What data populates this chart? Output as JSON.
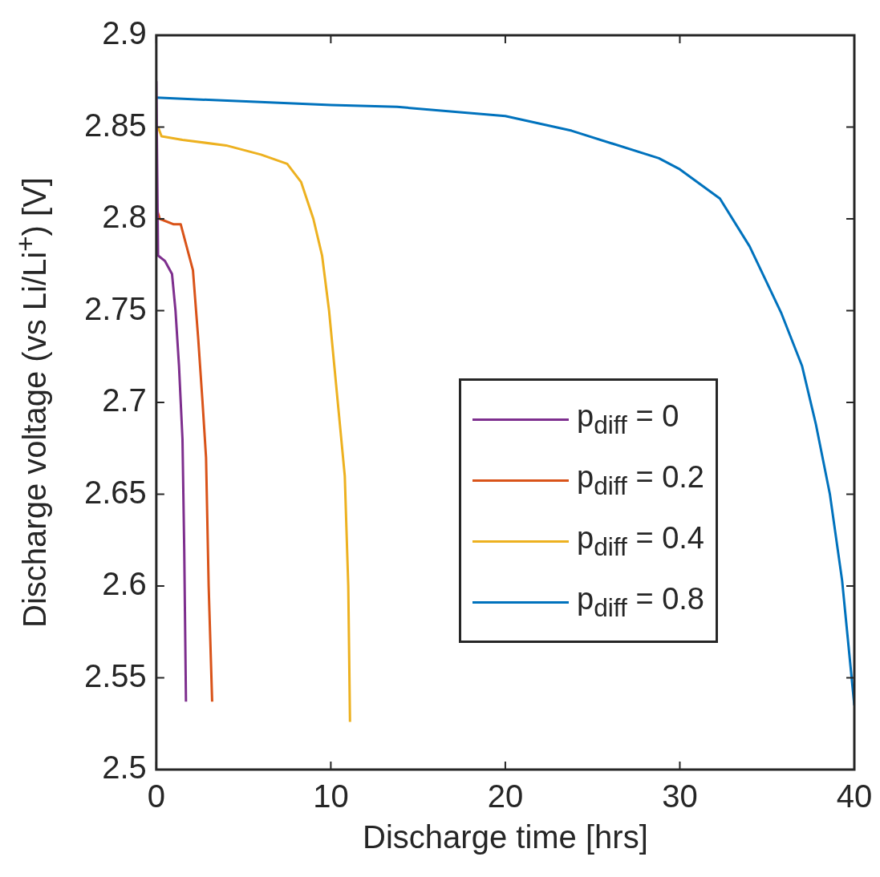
{
  "chart_data": {
    "type": "line",
    "xlabel": "Discharge time [hrs]",
    "ylabel": "Discharge voltage (vs Li/Li$^{+}$) [V]",
    "xlim": [
      0,
      40
    ],
    "ylim": [
      2.5,
      2.9
    ],
    "xticks": [
      0,
      10,
      20,
      30,
      40
    ],
    "yticks": [
      2.5,
      2.55,
      2.6,
      2.65,
      2.7,
      2.75,
      2.8,
      2.85,
      2.9
    ],
    "grid": false,
    "legend": "right",
    "marker": "none",
    "line_style": "solid",
    "series": [
      {
        "name": "p$_{diff}$ = 0",
        "color": "#7e2f8e",
        "x": [
          0,
          0.1,
          0.5,
          0.9,
          1.1,
          1.3,
          1.5,
          1.6,
          1.7
        ],
        "values": [
          2.875,
          2.78,
          2.777,
          2.77,
          2.75,
          2.72,
          2.68,
          2.62,
          2.537
        ]
      },
      {
        "name": "p$_{diff}$ = 0.2",
        "color": "#d95319",
        "x": [
          0,
          0.2,
          1.0,
          1.4,
          2.1,
          2.4,
          2.65,
          2.85,
          3.0,
          3.2
        ],
        "values": [
          2.806,
          2.8,
          2.797,
          2.797,
          2.772,
          2.735,
          2.7,
          2.67,
          2.6,
          2.537
        ]
      },
      {
        "name": "p$_{diff}$ = 0.4",
        "color": "#edb120",
        "x": [
          0.1,
          0.3,
          1.5,
          4,
          6,
          7.5,
          8.3,
          9,
          9.5,
          9.9,
          10.2,
          10.5,
          10.8,
          11.0,
          11.1
        ],
        "values": [
          2.85,
          2.845,
          2.843,
          2.84,
          2.835,
          2.83,
          2.82,
          2.8,
          2.78,
          2.75,
          2.72,
          2.69,
          2.66,
          2.6,
          2.526
        ]
      },
      {
        "name": "p$_{diff}$ = 0.8",
        "color": "#0072bd",
        "x": [
          0,
          10,
          13.8,
          20,
          23.8,
          28.8,
          30,
          32.3,
          34,
          35,
          35.8,
          37,
          37.8,
          38.6,
          39.3,
          40
        ],
        "values": [
          2.866,
          2.862,
          2.861,
          2.856,
          2.848,
          2.833,
          2.827,
          2.811,
          2.785,
          2.765,
          2.749,
          2.72,
          2.688,
          2.65,
          2.603,
          2.535
        ]
      }
    ]
  }
}
